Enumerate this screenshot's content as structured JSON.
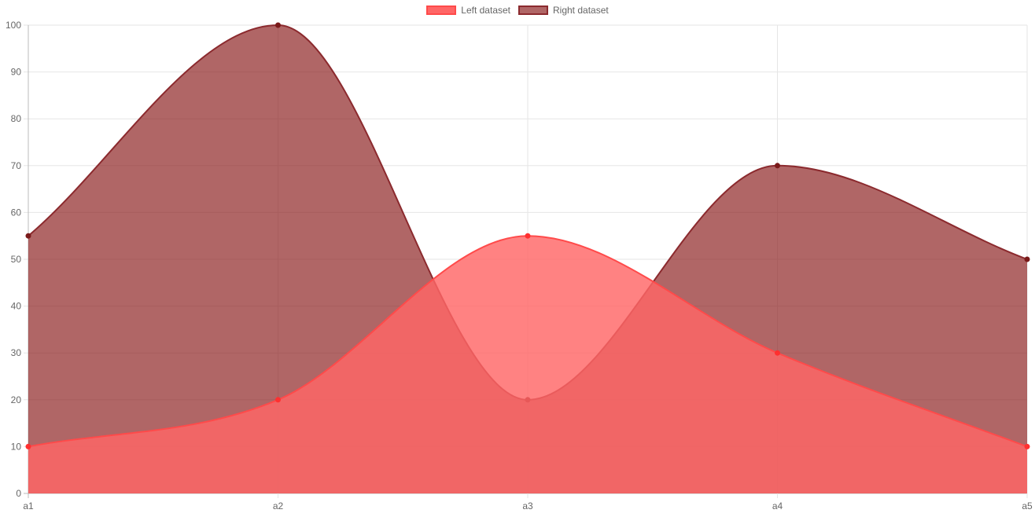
{
  "chart_data": {
    "type": "area",
    "categories": [
      "a1",
      "a2",
      "a3",
      "a4",
      "a5"
    ],
    "series": [
      {
        "name": "Left dataset",
        "values": [
          10,
          20,
          55,
          30,
          10
        ],
        "fill_color": "#ff6666",
        "stroke_color": "#ff4a4a",
        "point_color": "#ff3030"
      },
      {
        "name": "Right dataset",
        "values": [
          55,
          100,
          20,
          70,
          50
        ],
        "fill_color": "#8b1e1e",
        "fill_opacity": 0.68,
        "stroke_color": "#8b2a2e",
        "point_color": "#7a1a1a"
      }
    ],
    "ylim": [
      0,
      100
    ],
    "y_ticks": [
      "0",
      "10",
      "20",
      "30",
      "40",
      "50",
      "60",
      "70",
      "80",
      "90",
      "100"
    ],
    "grid": true,
    "legend_position": "top-center",
    "curve": "smooth"
  }
}
